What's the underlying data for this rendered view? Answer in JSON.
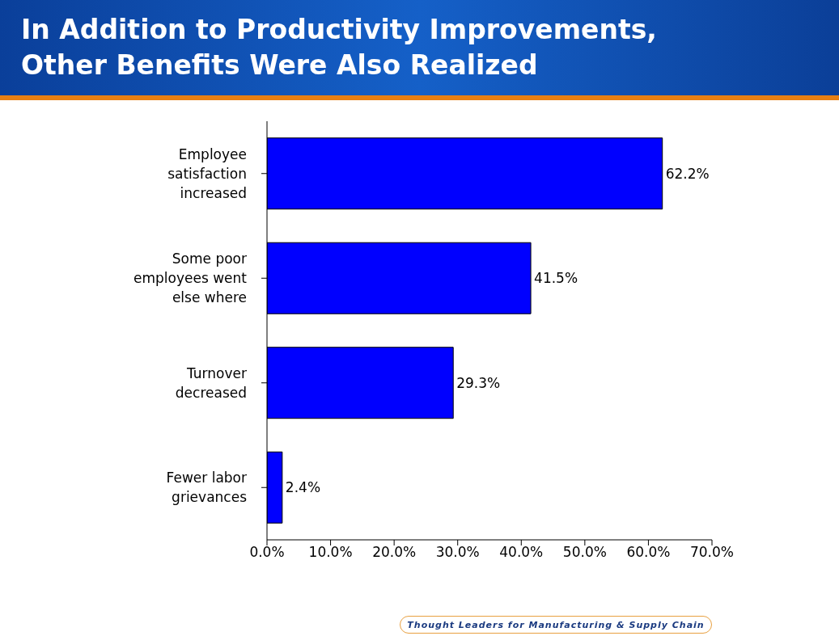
{
  "chart_data": {
    "type": "bar",
    "orientation": "horizontal",
    "title": "In Addition to Productivity Improvements, Other Benefits Were Also Realized",
    "categories": [
      "Employee satisfaction increased",
      "Some poor employees went else where",
      "Turnover decreased",
      "Fewer labor grievances"
    ],
    "values": [
      62.2,
      41.5,
      29.3,
      2.4
    ],
    "color": "#0000ff",
    "value_labels": [
      "62.2%",
      "41.5%",
      "29.3%",
      "2.4%"
    ],
    "xlim": [
      0,
      70
    ],
    "xticks": [
      {
        "value": 0,
        "label": "0.0%"
      },
      {
        "value": 10,
        "label": "10.0%"
      },
      {
        "value": 20,
        "label": "20.0%"
      },
      {
        "value": 30,
        "label": "30.0%"
      },
      {
        "value": 40,
        "label": "40.0%"
      },
      {
        "value": 50,
        "label": "50.0%"
      },
      {
        "value": 60,
        "label": "60.0%"
      },
      {
        "value": 70,
        "label": "70.0%"
      }
    ],
    "annotations": [
      "Thought Leaders for Manufacturing & Supply Chain"
    ]
  }
}
